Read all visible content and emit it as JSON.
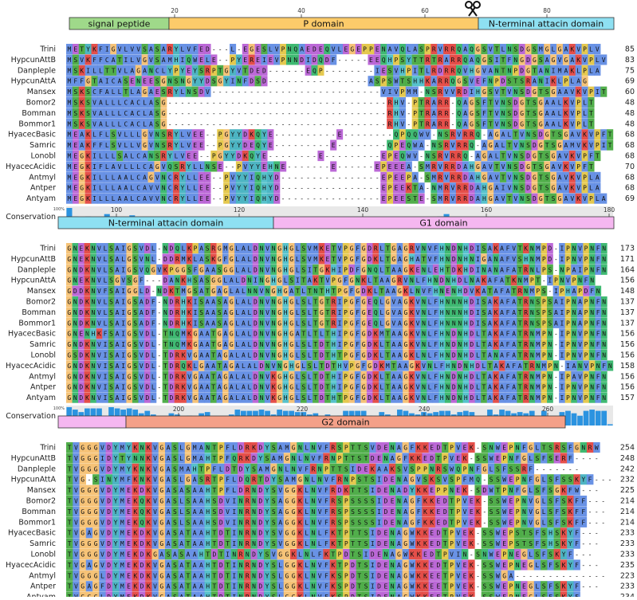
{
  "colors": {
    "signal_peptide": "#9fd98a",
    "p_domain": "#fccb6a",
    "n_terminal_attacin": "#8ee0f2",
    "g1_domain": "#f5b7f0",
    "g2_domain": "#f4a088",
    "conservation_bar": "#2b93e0",
    "residue_green": "#33a02c",
    "residue_orange": "#f4b860",
    "residue_blue": "#4f7fe0",
    "residue_red": "#e0302a",
    "residue_magenta": "#b04fd0",
    "residue_cyan": "#39b7c3"
  },
  "conservation_label": "Conservation",
  "conservation_ticks": [
    "100%",
    "0%"
  ],
  "scissors_icon": "scissors-icon",
  "blocks": [
    {
      "ticks": [
        "20",
        "40",
        "60",
        "80"
      ],
      "domains": [
        {
          "label": "signal peptide",
          "color": "signal_peptide"
        },
        {
          "label": "P domain",
          "color": "p_domain"
        },
        {
          "label": "N-terminal attacin domain",
          "color": "n_terminal_attacin"
        }
      ],
      "rows": [
        {
          "name": "Trini",
          "seq": "METYKFIGVLVVSASARYLVFED---L-EGESLVPNQAEDEQVLEGEPPENAVQLASPRVRRQAQGSVTLNSDGSMGLGAKVPLV",
          "end": "85"
        },
        {
          "name": "HypcunAttB",
          "seq": "MSVKFFCATILVGVSAMHIQWELE--PYEREIEVPNNDIDQDF-----EEQHPSYTTRTRARRQAQGSITFNGDGSAGVGAKVPLV",
          "end": "83"
        },
        {
          "name": "Danpleple",
          "seq": "MSKILLTTVLAGANCLYPYEYSRPTGYVTDED------EQP--------IESVHPITLRDRRQVHGVANTNPDGTANIMAKLPLA",
          "end": "75"
        },
        {
          "name": "HypcunAttA",
          "seq": "MFFGTAICASENEESGNSNGYYDSGYINFDSD----------------ASPSWTSHHKARRQGSVEFNPDSTSRANIKLPLAG",
          "end": "69"
        },
        {
          "name": "Mansex",
          "seq": "MSKSCFALLTLAGAESRYLNSDV---------------------------VIVPMM-NSRVVRDIHGSVTVNSDGTSGAAVKVPIT",
          "end": "60"
        },
        {
          "name": "Bomor2",
          "seq": "MSKSVALLLCACLASG-----------------------------------RHV-PTRARR-QAGSFTVNSDGTSGAALKVPLT",
          "end": "48"
        },
        {
          "name": "Bomman",
          "seq": "MSKSVALLLCACLASG-----------------------------------RHV-PTRARR-QAGSFTVNSDGTSGAALKVPLT",
          "end": "48"
        },
        {
          "name": "Bommor1",
          "seq": "MSKSVALLLCACLASG-----------------------------------RHV-PTRARR-QAGSFTVNSDGTSGAALKVPLT",
          "end": "48"
        },
        {
          "name": "HyacecBasic",
          "seq": "MEAKLFLSVLLLGVNSRYLVEE--PGYYDKQYE----------E--------QPQQWV-NSRVRRQ-AGALTVNSDGTSGAVKVPFT",
          "end": "68"
        },
        {
          "name": "Samric",
          "seq": "MEAKFFLSVLLVGVNSRYLVEE--PGYYDEQYE---------E--------QPEQWA-NSRVRRQ-AGALTVNSDGTSGAMVKVPIT",
          "end": "68"
        },
        {
          "name": "Lonobl",
          "seq": "MEGKILLLSALCANSRYLVEE--PGYYDKQYE--------E---------EPEQWV-NSRVRRQ-AGALTVNSDGTSGAVKVPFT",
          "end": "68"
        },
        {
          "name": "HyacecAcidic",
          "seq": "MEGKIFLAVLLLCAGVQSRYLLNSE--PVYYEHNE-------E------EPEEEA-SMRVRRDAHGAVTVNSDGTSGAVKVPFT",
          "end": "70"
        },
        {
          "name": "Antmyl",
          "seq": "MEGKILLLAALCAGVNCRYLLEE--PVYYIQHYD----------------EPEEPA-SMRVRRDAHGAVTVNSDGTSGAVKVPLA",
          "end": "68"
        },
        {
          "name": "Antper",
          "seq": "MEGKILLLAALCAVVNCRYLLEE--PVYYIQHYD----------------EPEEKTA-NMRVRRDAHGAIVNSDGTSGAVKVPLA",
          "end": "68"
        },
        {
          "name": "Antyam",
          "seq": "MEGKILLLAALCAVVNCRYLLEE--PVYYIQHYD----------------EPEESTE-SMRVRRDAHGAVTVNSDGTSGAVKVPLA",
          "end": "69"
        }
      ]
    },
    {
      "ticks": [
        "100",
        "120",
        "140",
        "160",
        "180"
      ],
      "domains": [
        {
          "label": "N-terminal attacin domain",
          "color": "n_terminal_attacin"
        },
        {
          "label": "G1 domain",
          "color": "g1_domain"
        }
      ],
      "rows": [
        {
          "name": "Trini",
          "seq": "GNEKNVLSAIGSVDL-NDQLKPASRGMGLALDNVNGHGLSVMKETVPGFGDRLTGAGRVNVFHNDNHDISAKAFVTKNMPD-IPNVPNFN",
          "end": "173"
        },
        {
          "name": "HypcunAttB",
          "seq": "GNEKNVLSALGSVNL-DDRMKLASKGFGLALDNVNGHGLSVMKETVPGFGDKLTGAGHATVFHNDNHNIGANAFVSHNMPD-IPNVPNFN",
          "end": "171"
        },
        {
          "name": "Danpleple",
          "seq": "GNDKNVLSAIGSVQGVKPGGSFGAASGGLALDNVNGHGLSITGKHIPDFGNQLTAAGKENLEHTDKHDINANAFATRNLPS-NPAIPNFN",
          "end": "164"
        },
        {
          "name": "HypcunAttA",
          "seq": "GNEKNVLSGVSGF---DANKHSASGGLALDNINGHGLSITAKTVPGFGNKLTAAGRVNLFHNDNHDLNAKAFATKNMPT-IPNVPNFN",
          "end": "156"
        },
        {
          "name": "Mansex",
          "seq": "GDDKNVFSAIGGLD-NDKTMGSATGAGLALNNVNGHGATLTNTHTPGFGDKLTAAGKLNVFHNENHDVKATAFATRNMPS-IPHAPDFN",
          "end": "148"
        },
        {
          "name": "Bomor2",
          "seq": "GNDKNVLSAIGSADF-NDRHKISAASAGLALDNVNGHGLSLTGTRIPGFGEQLGVAGKVNLFHNNNHDISAKAFATRNSPSAIPNAPNFN",
          "end": "137"
        },
        {
          "name": "Bomman",
          "seq": "GNDKNVLSAIGSADF-NDRHKISAASAGLALDNVNGHGLSLTGTRIPGFGEQLGVAGKVNLFHNNNHDISAKAFATRNSPSAIPNAPNFN",
          "end": "137"
        },
        {
          "name": "Bommor1",
          "seq": "GNDKNVLSAIGSADF-NDRHKISAASAGLALDNVNGHGLSLTGTRIPGFGEQLGVAGKVNLFHNNNHDISAKAFATRNSPSAIPNAPNFN",
          "end": "137"
        },
        {
          "name": "HyacecBasic",
          "seq": "GNENHKFSAIGSVDL-TNQMKGAATGAGLALDNVNGHGATLTLTHIPGFGDKMTAAGKVNLFHNDNHDLTAKAFATRNMPN-IPNVPNFN",
          "end": "156"
        },
        {
          "name": "Samric",
          "seq": "GNDKNVISAIGSVDL-TNQMKGAATGAGLALDNVNGHGLSLTDTHIPGFGDKLTAAGKVNLFHNDNHDLTAKAFATRNMPN-IPNVPNFN",
          "end": "156"
        },
        {
          "name": "Lonobl",
          "seq": "GSDKNVISAIGSVDL-TDRKVGAATAGALALDNVNGHGLSLTDTHTPGFGDKLTAAGKLNLFHNDNHDLTANAFATRNMPN-IPNVPNFN",
          "end": "156"
        },
        {
          "name": "HyacecAcidic",
          "seq": "GNDKNVISAIGSVDL-TDRQKLGAATAGALALDNVNGHGLSLTDTHVPGFGDKMTAAGKVNLFHNDNHDLTAKAFATRNMPN-IANVPNFN",
          "end": "158"
        },
        {
          "name": "Antmyl",
          "seq": "GNDKNVISAIGSVDL-TDRKVGAATAGALALDNVKGHGLSLTDTHIPGFGDKLTAAGKVNLFHNDNHDLTAKAFATRNMPN-IPAVPNFN",
          "end": "156"
        },
        {
          "name": "Antper",
          "seq": "GNDKNVISAIGSVDL-TDRKVGAATAGALALDNVKGHGLSLTDTHIPGFGDKLTAAGKVNLFHNDNHDLTAKAFATRNMPN-IPNVPNFN",
          "end": "156"
        },
        {
          "name": "Antyam",
          "seq": "GNDKNVISAIGSVDL-TDRKVGAATAGALALDNVKGHGLSLTDTHTPGFGDKLTAAGKVNLFHNDNHDLTAKAFATRNMPN-IPNVPNFN",
          "end": "157"
        }
      ]
    },
    {
      "ticks": [
        "200",
        "220",
        "240",
        "260"
      ],
      "domains": [
        {
          "label": "",
          "color": "g1_domain"
        },
        {
          "label": "G2 domain",
          "color": "g2_domain"
        }
      ],
      "rows": [
        {
          "name": "Trini",
          "seq": "TVGGGVDYMYKNKVGASLGMANTPFLDRKDYSAMGNLNVFRSPTTSVDENAGFKKEDTPVEK-SNWEPNFGLTSRSFGNRW",
          "end": "254"
        },
        {
          "name": "HypcunAttB",
          "seq": "TVGGGIDYTYNNKVGASLGMAHTPFQRKDYSAMGNLNVFRNPTTSTDENAGFKKEDTPVEK-SSWEPNFGLSFSERF----",
          "end": "248"
        },
        {
          "name": "Danpleple",
          "seq": "TVGGGVDYMYKNKVGASMAHTPFLDTDYSAMGNLNVFRNPTTSIDEKAAKSVSPPNRSWQPNFGLSFSSRF-------",
          "end": "242"
        },
        {
          "name": "HypcunAttA",
          "seq": "TVG-SINYMFKNKVGASLGASRTPFLDQRTDYSAMGNLNVFRNPSTSIDENAGVSKSVSPFMQ-SSWEPNFGLSFSSKYF---",
          "end": "232"
        },
        {
          "name": "Mansex",
          "seq": "TVGGGVDYMEKDKVGASASAAHTPFLDRNDYSVGGKLNVFRDKTTSIDENADYKKEPPNEK-SDWTPNFGLSFSGKFW---",
          "end": "225"
        },
        {
          "name": "Bomor2",
          "seq": "TVGGGVDYMEKQKVGASLSAAHSDVINRNDYSAGGKLNVFRSPSSSSIDENAGFKKEDTPVEK-SSWEPNVGLSFSKFF---",
          "end": "214"
        },
        {
          "name": "Bomman",
          "seq": "TVGGGVDYMEKQKVGASLSAAHSDVINRNDYSAGGKLNVFRSPSSSSIDENAGFKKEDTPVEK-SSWEPNVGLSFSKFF---",
          "end": "214"
        },
        {
          "name": "Bommor1",
          "seq": "TVGGGVDYMEKQKVGASLSAAHSDVINRNDYSAGGKLNVFRSPSSSSIDENAGFKKEDTPVEK-SSWEPNVGLSFSKFF---",
          "end": "214"
        },
        {
          "name": "HyacecBasic",
          "seq": "TVGAGVDYMEKDKVGASATAAHTDTINRNDYSVGGKLNLFKTPTTSIDENAGWKKEDTPVEK-SSWEPSTSFSHSKYF---",
          "end": "233"
        },
        {
          "name": "Samric",
          "seq": "TVGGGVDYMEKDKVGASATAAHTDTINRNDYSVGGKLNLFKTPTTSIDENAGWKKEDTPVEK-SSWEPSTSFSHSKYF---",
          "end": "233"
        },
        {
          "name": "Lonobl",
          "seq": "TVGGGVDYMEKDKGASASAAHTDTINRNDYSVGGKLNLFKTPDTSIDENAGWKKEDTPVIN-SNWEPNEGLSFSKYF---",
          "end": "233"
        },
        {
          "name": "HyacecAcidic",
          "seq": "TVGAGVDYMEKDKVGASATAAHTDTINRNDYSLGGKLNVFKTPDTSIDENAGWKKEDTPVEK-SSWEPNEGLSFSKYF---",
          "end": "235"
        },
        {
          "name": "Antmyl",
          "seq": "TVGGGLDYMEKDKVGASATAAHTDTINRNDYSLGGKLNVFKSPDTSIDENAGWKKEETPVEK-SSWGA--------------",
          "end": "223"
        },
        {
          "name": "Antper",
          "seq": "TVGAGFDYMEKDKVGASATAAHTDTINRNDYSLGGKLNVFKSPDTSIDENAGWKKEETPVEK-SSWEPNEGLSFSKYF---",
          "end": "233"
        },
        {
          "name": "Antyam",
          "seq": "TVGGGLDYMEKDKVGASATAAHTDTINRNDYSLGGKLNVFKSPDTSIDENAGWKKEETPVEK-SSWEPNEGLSFSKYF---",
          "end": "234"
        }
      ]
    }
  ]
}
